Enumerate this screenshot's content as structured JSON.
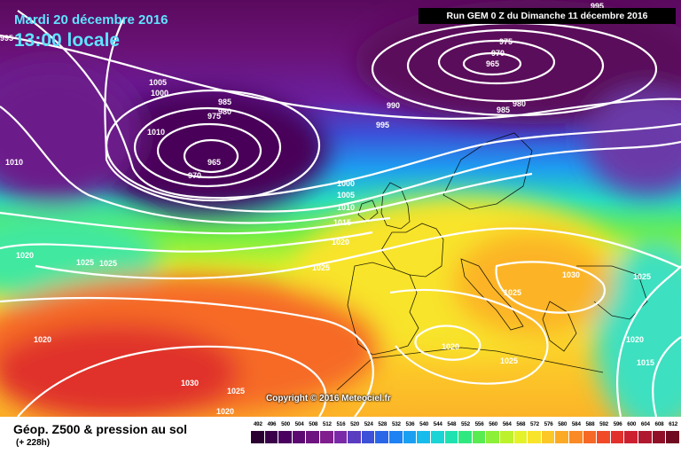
{
  "header": {
    "date": "Mardi 20 décembre 2016",
    "time": "13:00 locale",
    "run": "Run GEM 0 Z du Dimanche 11 décembre 2016"
  },
  "copyright": "Copyright © 2016 Meteociel.fr",
  "footer": {
    "title": "Géop. Z500 & pression au sol",
    "subtitle": "(+ 228h)"
  },
  "legend": {
    "values": [
      "492",
      "496",
      "500",
      "504",
      "508",
      "512",
      "516",
      "520",
      "524",
      "528",
      "532",
      "536",
      "540",
      "544",
      "548",
      "552",
      "556",
      "560",
      "564",
      "568",
      "572",
      "576",
      "580",
      "584",
      "588",
      "592",
      "596",
      "600",
      "604",
      "608",
      "612"
    ],
    "colors": [
      "#2a0030",
      "#3a0048",
      "#4a005e",
      "#5c0a72",
      "#6e1480",
      "#801e8e",
      "#7a2aa6",
      "#5a3cc0",
      "#3c50d8",
      "#2a66e8",
      "#1e82f2",
      "#1aa0f2",
      "#18bcec",
      "#1ad4d6",
      "#20e2b0",
      "#30e880",
      "#58ec50",
      "#8cf038",
      "#bcf22c",
      "#e4f22a",
      "#f8e42a",
      "#fcc828",
      "#fcaa26",
      "#fa8a26",
      "#f66826",
      "#f04a28",
      "#e2302c",
      "#cc2030",
      "#b01830",
      "#901028",
      "#700a20"
    ]
  },
  "pressure_labels": [
    {
      "text": "995"
    },
    {
      "text": "1010"
    },
    {
      "text": "1005"
    },
    {
      "text": "1000"
    },
    {
      "text": "985"
    },
    {
      "text": "980"
    },
    {
      "text": "975"
    },
    {
      "text": "965"
    },
    {
      "text": "970"
    },
    {
      "text": "1010"
    },
    {
      "text": "975"
    },
    {
      "text": "970"
    },
    {
      "text": "965"
    },
    {
      "text": "995"
    },
    {
      "text": "990"
    },
    {
      "text": "985"
    },
    {
      "text": "980"
    },
    {
      "text": "995"
    },
    {
      "text": "1000"
    },
    {
      "text": "1005"
    },
    {
      "text": "1010"
    },
    {
      "text": "1015"
    },
    {
      "text": "1020"
    },
    {
      "text": "1020"
    },
    {
      "text": "1025"
    },
    {
      "text": "1025"
    },
    {
      "text": "1030"
    },
    {
      "text": "1025"
    },
    {
      "text": "1025"
    },
    {
      "text": "1020"
    },
    {
      "text": "1020"
    },
    {
      "text": "1025"
    },
    {
      "text": "1030"
    },
    {
      "text": "1025"
    },
    {
      "text": "1020"
    },
    {
      "text": "1025"
    },
    {
      "text": "1020"
    },
    {
      "text": "1015"
    }
  ]
}
